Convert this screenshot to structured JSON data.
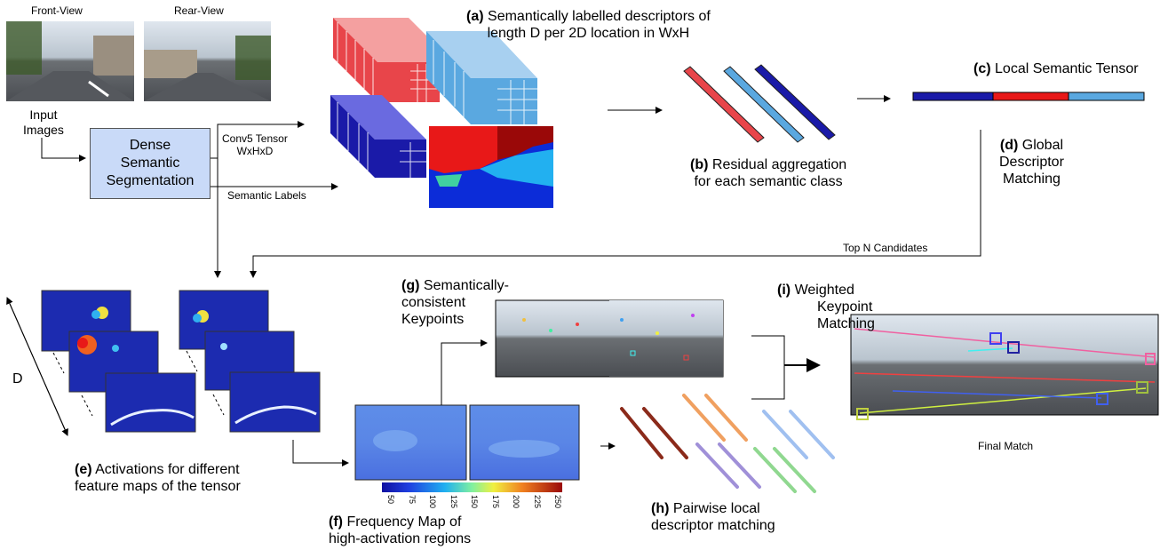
{
  "views": {
    "front": "Front-View",
    "rear": "Rear-View"
  },
  "input": {
    "line1": "Input",
    "line2": "Images"
  },
  "segmentation": {
    "line1": "Dense",
    "line2": "Semantic",
    "line3": "Segmentation"
  },
  "edges": {
    "conv5_line1": "Conv5 Tensor",
    "conv5_line2": "WxHxD",
    "semantic_labels": "Semantic Labels",
    "top_n": "Top N Candidates"
  },
  "step_a": {
    "tag": "(a)",
    "line1": "Semantically labelled descriptors  of",
    "line2": "length D per 2D location in WxH"
  },
  "step_b": {
    "tag": "(b)",
    "line1": "Residual aggregation",
    "line2": "for each semantic class"
  },
  "step_c": {
    "tag": "(c)",
    "text": "Local Semantic Tensor"
  },
  "step_d": {
    "tag": "(d)",
    "line1": "Global",
    "line2": "Descriptor",
    "line3": "Matching"
  },
  "step_e": {
    "tag": "(e)",
    "line1": "Activations for different",
    "line2": "feature maps of the tensor"
  },
  "step_f": {
    "tag": "(f)",
    "line1": "Frequency Map of",
    "line2": "high-activation regions"
  },
  "step_g": {
    "tag": "(g)",
    "line1": "Semantically-",
    "line2": "consistent",
    "line3": "Keypoints"
  },
  "step_h": {
    "tag": "(h)",
    "line1": "Pairwise local",
    "line2": "descriptor matching"
  },
  "step_i": {
    "tag": "(i)",
    "line1": "Weighted",
    "line2": "Keypoint",
    "line3": "Matching"
  },
  "axis_d": "D",
  "final_match": "Final Match",
  "colorbar_ticks": [
    "50",
    "75",
    "100",
    "125",
    "150",
    "175",
    "200",
    "225",
    "250"
  ],
  "colors": {
    "red": "#e8454a",
    "light_blue": "#5aa8e0",
    "dark_blue": "#1a1aa8",
    "seg_box": "#c9daf8",
    "heat_bg": "#1c2bb0"
  }
}
